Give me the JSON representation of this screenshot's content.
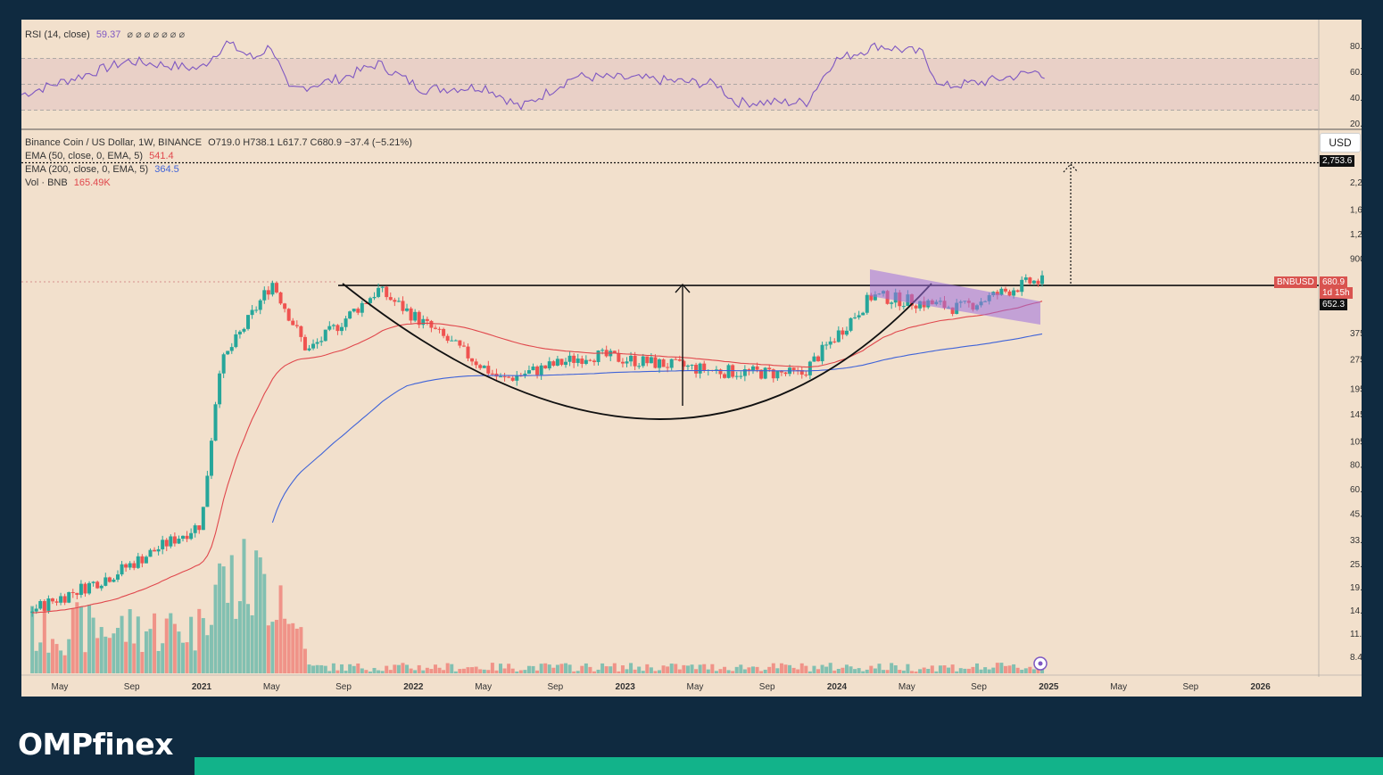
{
  "brand": {
    "logo_text": "OMPfinex"
  },
  "rsi": {
    "label": "RSI (14, close)",
    "value": "59.37",
    "dots": "⌀ ⌀ ⌀ ⌀ ⌀ ⌀ ⌀",
    "y_ticks": [
      "80.00",
      "60.00",
      "40.00",
      "20.00"
    ],
    "band": [
      30,
      70
    ]
  },
  "main": {
    "title": "Binance Coin / US Dollar, 1W, BINANCE",
    "ohlc": "O719.0  H738.1  L617.7  C680.9  −37.4 (−5.21%)",
    "ema50_label": "EMA (50, close, 0, EMA, 5)",
    "ema50_value": "541.4",
    "ema200_label": "EMA (200, close, 0, EMA, 5)",
    "ema200_value": "364.5",
    "vol_label": "Vol · BNB",
    "vol_value": "165.49K",
    "currency": "USD"
  },
  "price_tags": {
    "target": "2,753.6",
    "symbol": "BNBUSD",
    "last_price": "680.9",
    "countdown": "1d 15h",
    "level": "652.3"
  },
  "colors": {
    "background": "#f2e0cc",
    "up": "#26a69a",
    "down": "#ef5350",
    "ema50": "#e0474c",
    "ema200": "#3f63d8",
    "rsi": "#7e57c2",
    "channel": "#9c6dde",
    "accent": "#12b38a",
    "navy": "#0f2a40"
  },
  "chart_data": {
    "type": "candlestick",
    "scale": "log",
    "y_ticks": [
      "2,200.0",
      "1,600.0",
      "1,200.0",
      "900.0",
      "375.0",
      "275.0",
      "195.0",
      "145.0",
      "105.0",
      "80.0",
      "60.0",
      "45.0",
      "33.0",
      "25.0",
      "19.0",
      "14.5",
      "11.0",
      "8.4"
    ],
    "x_ticks": [
      "May",
      "Sep",
      "2021",
      "May",
      "Sep",
      "2022",
      "May",
      "Sep",
      "2023",
      "May",
      "Sep",
      "2024",
      "May",
      "Sep",
      "2025",
      "May",
      "Sep",
      "2026"
    ],
    "key_points": [
      {
        "date": "2020-03",
        "price": 14
      },
      {
        "date": "2020-08",
        "price": 22
      },
      {
        "date": "2021-01",
        "price": 40
      },
      {
        "date": "2021-02",
        "price": 250
      },
      {
        "date": "2021-05",
        "price": 680
      },
      {
        "date": "2021-07",
        "price": 300
      },
      {
        "date": "2021-11",
        "price": 620
      },
      {
        "date": "2022-06",
        "price": 215
      },
      {
        "date": "2022-11",
        "price": 290
      },
      {
        "date": "2023-06",
        "price": 240
      },
      {
        "date": "2023-11",
        "price": 230
      },
      {
        "date": "2024-03",
        "price": 580
      },
      {
        "date": "2024-08",
        "price": 500
      },
      {
        "date": "2024-12",
        "price": 680.9
      }
    ],
    "ema50_end": 541.4,
    "ema200_end": 364.5,
    "resistance_level": 652.3,
    "target_level": 2753.6,
    "pattern": "cup and handle"
  }
}
